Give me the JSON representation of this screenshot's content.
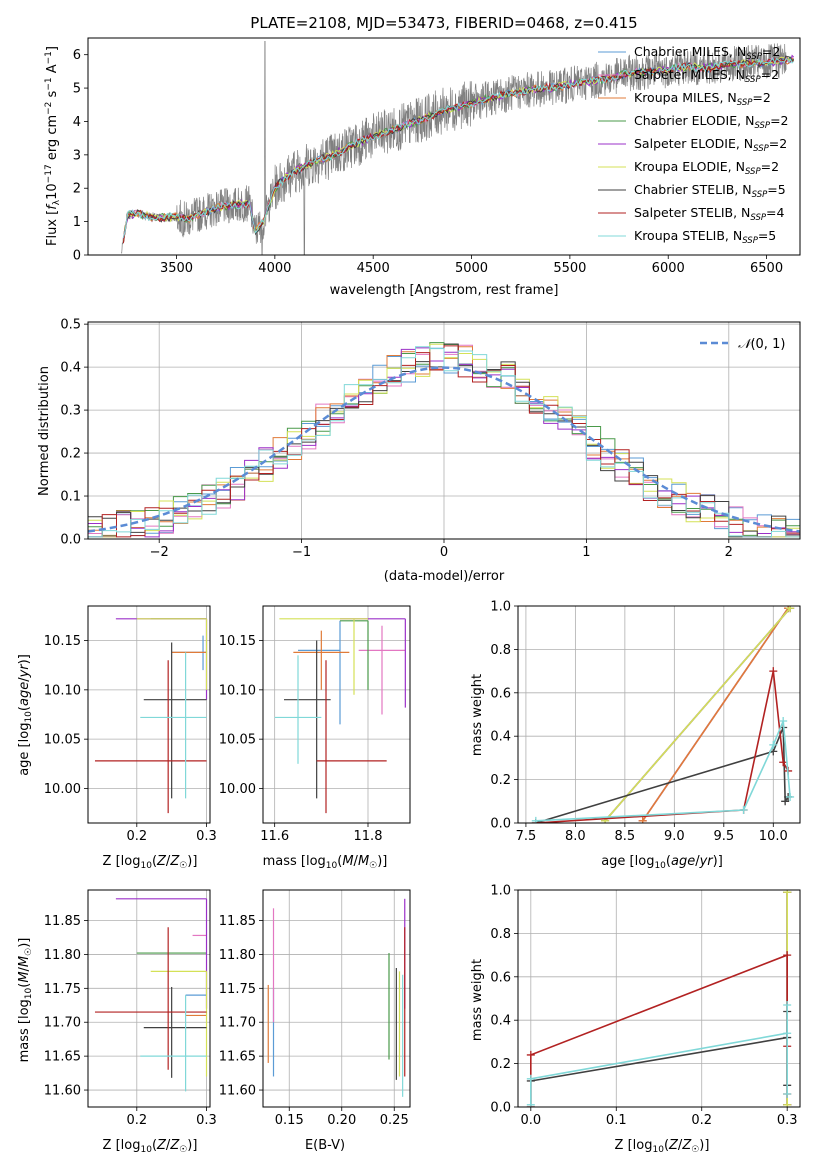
{
  "figure_title": "PLATE=2108, MJD=53473, FIBERID=0468, z=0.415",
  "series": [
    {
      "name": "Chabrier MILES, N$_{SSP}$=2",
      "color": "#5b9bd5",
      "nssp": "2"
    },
    {
      "name": "Salpeter MILES, N$_{SSP}$=2",
      "color": "#e377c2",
      "nssp": "2"
    },
    {
      "name": "Kroupa MILES, N$_{SSP}$=2",
      "color": "#e07b39",
      "nssp": "2"
    },
    {
      "name": "Chabrier ELODIE, N$_{SSP}$=2",
      "color": "#4a9a4a",
      "nssp": "2"
    },
    {
      "name": "Salpeter ELODIE, N$_{SSP}$=2",
      "color": "#9b30c8",
      "nssp": "2"
    },
    {
      "name": "Kroupa ELODIE, N$_{SSP}$=2",
      "color": "#d4e157",
      "nssp": "2"
    },
    {
      "name": "Chabrier STELIB, N$_{SSP}$=5",
      "color": "#404040",
      "nssp": "5"
    },
    {
      "name": "Salpeter STELIB, N$_{SSP}$=4",
      "color": "#b22222",
      "nssp": "4"
    },
    {
      "name": "Kroupa STELIB, N$_{SSP}$=5",
      "color": "#80d8d8",
      "nssp": "5"
    }
  ],
  "chart_data": [
    {
      "id": "spectrum",
      "type": "line",
      "xlabel": "wavelength [Angstrom, rest frame]",
      "ylabel": "Flux [f_λ 10^-17 erg cm^-2 s^-1 A^-1]",
      "xlim": [
        3050,
        6670
      ],
      "ylim": [
        0,
        6.5
      ],
      "xticks": [
        3500,
        4000,
        4500,
        5000,
        5500,
        6000,
        6500
      ],
      "yticks": [
        0,
        1,
        2,
        3,
        4,
        5,
        6
      ],
      "data_color": "#808080",
      "continuum": {
        "x": [
          3220,
          3250,
          3300,
          3400,
          3500,
          3550,
          3600,
          3700,
          3800,
          3870,
          3900,
          3940,
          4000,
          4050,
          4100,
          4200,
          4300,
          4400,
          4500,
          4600,
          4700,
          4800,
          4900,
          5000,
          5100,
          5200,
          5300,
          5400,
          5500,
          5600,
          5700,
          5800,
          5900,
          6000,
          6100,
          6200,
          6300,
          6400,
          6500,
          6670
        ],
        "y": [
          0.05,
          1.2,
          1.25,
          1.1,
          1.15,
          1.05,
          1.2,
          1.4,
          1.5,
          1.55,
          0.7,
          1.0,
          2.0,
          2.3,
          2.5,
          2.8,
          3.0,
          3.3,
          3.55,
          3.75,
          3.95,
          4.2,
          4.4,
          4.55,
          4.7,
          4.85,
          4.95,
          5.0,
          5.1,
          5.2,
          5.3,
          5.45,
          5.5,
          5.55,
          5.65,
          5.6,
          5.7,
          5.75,
          5.75,
          5.9
        ]
      }
    },
    {
      "id": "residuals",
      "type": "histogram",
      "xlabel": "(data-model)/error",
      "ylabel": "Normed distribution",
      "xlim": [
        -2.5,
        2.5
      ],
      "ylim": [
        0,
        0.505
      ],
      "xticks": [
        -2,
        -1,
        0,
        1,
        2
      ],
      "yticks": [
        0.0,
        0.1,
        0.2,
        0.3,
        0.4,
        0.5
      ],
      "grid": true,
      "bin_width": 0.1,
      "legend": "N(0,1)",
      "normal_curve": {
        "mean": 0,
        "sigma": 1,
        "style": "dashed",
        "color": "#5b8bd5"
      }
    },
    {
      "id": "age_vs_Z",
      "type": "errorbar",
      "xlabel": "Z [log10(Z/Z☉)]",
      "ylabel": "age  [log10(age/yr)]",
      "xlim": [
        0.13,
        0.305
      ],
      "ylim": [
        9.965,
        10.185
      ],
      "xticks": [
        0.2,
        0.3
      ],
      "yticks": [
        10.0,
        10.05,
        10.1,
        10.15
      ],
      "grid": true,
      "points": [
        {
          "s": 0,
          "x": 0.295,
          "y": 10.138,
          "xl": 0.25,
          "xh": 0.3,
          "yl": 10.12,
          "yh": 10.155
        },
        {
          "s": 1,
          "x": 0.3,
          "y": 10.172,
          "xl": 0.29,
          "xh": 0.3,
          "yl": 10.172,
          "yh": 10.172
        },
        {
          "s": 2,
          "x": 0.275,
          "y": 10.138,
          "xl": 0.25,
          "xh": 0.3,
          "yl": 10.138,
          "yh": 10.138
        },
        {
          "s": 3,
          "x": 0.3,
          "y": 10.172,
          "xl": 0.22,
          "xh": 0.3,
          "yl": 10.172,
          "yh": 10.172
        },
        {
          "s": 4,
          "x": 0.3,
          "y": 10.172,
          "xl": 0.17,
          "xh": 0.3,
          "yl": 10.09,
          "yh": 10.172
        },
        {
          "s": 5,
          "x": 0.3,
          "y": 10.172,
          "xl": 0.2,
          "xh": 0.3,
          "yl": 10.1,
          "yh": 10.172
        },
        {
          "s": 6,
          "x": 0.25,
          "y": 10.09,
          "xl": 0.21,
          "xh": 0.3,
          "yl": 9.99,
          "yh": 10.148
        },
        {
          "s": 7,
          "x": 0.245,
          "y": 10.028,
          "xl": 0.14,
          "xh": 0.3,
          "yl": 9.975,
          "yh": 10.13
        },
        {
          "s": 8,
          "x": 0.27,
          "y": 10.072,
          "xl": 0.205,
          "xh": 0.3,
          "yl": 9.99,
          "yh": 10.138
        }
      ]
    },
    {
      "id": "age_vs_mass",
      "type": "errorbar",
      "xlabel": "mass [log10(M/M☉)]",
      "ylabel": "",
      "xlim": [
        11.575,
        11.89
      ],
      "ylim": [
        9.965,
        10.185
      ],
      "xticks": [
        11.6,
        11.8
      ],
      "yticks": [
        10.0,
        10.05,
        10.1,
        10.15
      ],
      "grid": true,
      "points": [
        {
          "s": 0,
          "x": 11.74,
          "y": 10.14,
          "xl": 11.65,
          "xh": 11.74,
          "yl": 10.065,
          "yh": 10.17
        },
        {
          "s": 1,
          "x": 11.83,
          "y": 10.14,
          "xl": 11.78,
          "xh": 11.88,
          "yl": 10.075,
          "yh": 10.165
        },
        {
          "s": 2,
          "x": 11.7,
          "y": 10.138,
          "xl": 11.64,
          "xh": 11.76,
          "yl": 10.1,
          "yh": 10.16
        },
        {
          "s": 3,
          "x": 11.8,
          "y": 10.17,
          "xl": 11.74,
          "xh": 11.8,
          "yl": 10.1,
          "yh": 10.17
        },
        {
          "s": 4,
          "x": 11.88,
          "y": 10.172,
          "xl": 11.74,
          "xh": 11.88,
          "yl": 10.082,
          "yh": 10.172
        },
        {
          "s": 5,
          "x": 11.77,
          "y": 10.172,
          "xl": 11.61,
          "xh": 11.8,
          "yl": 10.095,
          "yh": 10.172
        },
        {
          "s": 6,
          "x": 11.69,
          "y": 10.09,
          "xl": 11.62,
          "xh": 11.72,
          "yl": 9.99,
          "yh": 10.15
        },
        {
          "s": 7,
          "x": 11.71,
          "y": 10.028,
          "xl": 11.69,
          "xh": 11.84,
          "yl": 9.975,
          "yh": 10.13
        },
        {
          "s": 8,
          "x": 11.65,
          "y": 10.072,
          "xl": 11.6,
          "xh": 11.7,
          "yl": 10.025,
          "yh": 10.135
        }
      ]
    },
    {
      "id": "weight_vs_age",
      "type": "line",
      "xlabel": "age  [log10(age/yr)]",
      "ylabel": "mass weight",
      "xlim": [
        7.42,
        10.27
      ],
      "ylim": [
        0,
        1.0
      ],
      "xticks": [
        7.5,
        8.0,
        8.5,
        9.0,
        9.5,
        10.0
      ],
      "yticks": [
        0.0,
        0.2,
        0.4,
        0.6,
        0.8,
        1.0
      ],
      "grid": true,
      "lines": [
        {
          "s": 0,
          "x": [
            8.68,
            10.15
          ],
          "y": [
            0.01,
            0.99
          ]
        },
        {
          "s": 1,
          "x": [
            8.68,
            10.15
          ],
          "y": [
            0.01,
            0.99
          ]
        },
        {
          "s": 2,
          "x": [
            8.68,
            10.15
          ],
          "y": [
            0.01,
            0.99
          ]
        },
        {
          "s": 3,
          "x": [
            8.3,
            10.17
          ],
          "y": [
            0.01,
            0.99
          ]
        },
        {
          "s": 4,
          "x": [
            8.3,
            10.17
          ],
          "y": [
            0.01,
            0.99
          ]
        },
        {
          "s": 5,
          "x": [
            8.3,
            10.17
          ],
          "y": [
            0.01,
            0.99
          ]
        },
        {
          "s": 6,
          "x": [
            7.6,
            10.0,
            10.1,
            10.12,
            10.15
          ],
          "y": [
            0.0,
            0.33,
            0.44,
            0.1,
            0.12
          ]
        },
        {
          "s": 7,
          "x": [
            7.6,
            9.7,
            10.0,
            10.1,
            10.15
          ],
          "y": [
            0.0,
            0.06,
            0.7,
            0.28,
            0.24
          ]
        },
        {
          "s": 8,
          "x": [
            7.6,
            9.7,
            10.0,
            10.1,
            10.17
          ],
          "y": [
            0.01,
            0.06,
            0.36,
            0.47,
            0.12
          ]
        }
      ]
    },
    {
      "id": "mass_vs_Z",
      "type": "errorbar",
      "xlabel": "Z [log10(Z/Z☉)]",
      "ylabel": "mass [log10(M/M☉)]",
      "xlim": [
        0.13,
        0.305
      ],
      "ylim": [
        11.575,
        11.895
      ],
      "xticks": [
        0.2,
        0.3
      ],
      "yticks": [
        11.6,
        11.65,
        11.7,
        11.75,
        11.8,
        11.85
      ],
      "grid": true,
      "points": [
        {
          "s": 0,
          "x": 0.29,
          "y": 11.74,
          "xl": 0.27,
          "xh": 0.3,
          "yl": 11.74,
          "yh": 11.74
        },
        {
          "s": 1,
          "x": 0.3,
          "y": 11.828,
          "xl": 0.28,
          "xh": 0.3,
          "yl": 11.828,
          "yh": 11.828
        },
        {
          "s": 2,
          "x": 0.3,
          "y": 11.71,
          "xl": 0.27,
          "xh": 0.3,
          "yl": 11.71,
          "yh": 11.71
        },
        {
          "s": 3,
          "x": 0.3,
          "y": 11.802,
          "xl": 0.2,
          "xh": 0.3,
          "yl": 11.802,
          "yh": 11.802
        },
        {
          "s": 4,
          "x": 0.3,
          "y": 11.882,
          "xl": 0.17,
          "xh": 0.3,
          "yl": 11.72,
          "yh": 11.882
        },
        {
          "s": 5,
          "x": 0.3,
          "y": 11.775,
          "xl": 0.22,
          "xh": 0.3,
          "yl": 11.62,
          "yh": 11.775
        },
        {
          "s": 6,
          "x": 0.25,
          "y": 11.692,
          "xl": 0.21,
          "xh": 0.3,
          "yl": 11.618,
          "yh": 11.752
        },
        {
          "s": 7,
          "x": 0.245,
          "y": 11.715,
          "xl": 0.14,
          "xh": 0.3,
          "yl": 11.63,
          "yh": 11.84
        },
        {
          "s": 8,
          "x": 0.27,
          "y": 11.65,
          "xl": 0.205,
          "xh": 0.3,
          "yl": 11.598,
          "yh": 11.74
        }
      ]
    },
    {
      "id": "mass_vs_ebv",
      "type": "errorbar",
      "xlabel": "E(B-V)",
      "ylabel": "",
      "xlim": [
        0.125,
        0.265
      ],
      "ylim": [
        11.575,
        11.895
      ],
      "xticks": [
        0.15,
        0.2,
        0.25
      ],
      "yticks": [
        11.6,
        11.65,
        11.7,
        11.75,
        11.8,
        11.85
      ],
      "grid": true,
      "points": [
        {
          "s": 0,
          "x": 0.135,
          "y": 11.69,
          "xl": 0.135,
          "xh": 0.135,
          "yl": 11.62,
          "yh": 11.75
        },
        {
          "s": 1,
          "x": 0.135,
          "y": 11.78,
          "xl": 0.135,
          "xh": 0.135,
          "yl": 11.7,
          "yh": 11.868
        },
        {
          "s": 2,
          "x": 0.13,
          "y": 11.7,
          "xl": 0.13,
          "xh": 0.13,
          "yl": 11.64,
          "yh": 11.755
        },
        {
          "s": 3,
          "x": 0.245,
          "y": 11.72,
          "xl": 0.245,
          "xh": 0.245,
          "yl": 11.645,
          "yh": 11.802
        },
        {
          "s": 4,
          "x": 0.26,
          "y": 11.8,
          "xl": 0.26,
          "xh": 0.26,
          "yl": 11.72,
          "yh": 11.882
        },
        {
          "s": 5,
          "x": 0.255,
          "y": 11.7,
          "xl": 0.255,
          "xh": 0.255,
          "yl": 11.62,
          "yh": 11.775
        },
        {
          "s": 6,
          "x": 0.252,
          "y": 11.7,
          "xl": 0.252,
          "xh": 0.252,
          "yl": 11.615,
          "yh": 11.78
        },
        {
          "s": 7,
          "x": 0.26,
          "y": 11.7,
          "xl": 0.26,
          "xh": 0.26,
          "yl": 11.62,
          "yh": 11.84
        },
        {
          "s": 8,
          "x": 0.258,
          "y": 11.68,
          "xl": 0.258,
          "xh": 0.258,
          "yl": 11.59,
          "yh": 11.77
        }
      ]
    },
    {
      "id": "weight_vs_Z",
      "type": "line",
      "xlabel": "Z [log10(Z/Z☉)]",
      "ylabel": "mass weight",
      "xlim": [
        -0.015,
        0.315
      ],
      "ylim": [
        0,
        1.0
      ],
      "xticks": [
        0.0,
        0.1,
        0.2,
        0.3
      ],
      "yticks": [
        0.0,
        0.2,
        0.4,
        0.6,
        0.8,
        1.0
      ],
      "grid": true,
      "lines": [
        {
          "s": 0,
          "x": [
            0.3,
            0.3
          ],
          "y": [
            0.01,
            0.99
          ]
        },
        {
          "s": 1,
          "x": [
            0.3,
            0.3
          ],
          "y": [
            0.01,
            0.99
          ]
        },
        {
          "s": 2,
          "x": [
            0.3,
            0.3
          ],
          "y": [
            0.01,
            0.99
          ]
        },
        {
          "s": 3,
          "x": [
            0.3,
            0.3
          ],
          "y": [
            0.01,
            0.99
          ]
        },
        {
          "s": 4,
          "x": [
            0.3,
            0.3
          ],
          "y": [
            0.01,
            0.99
          ]
        },
        {
          "s": 5,
          "x": [
            0.3,
            0.3
          ],
          "y": [
            0.01,
            0.99
          ]
        },
        {
          "s": 6,
          "x": [
            0.0,
            0.0,
            0.3,
            0.3,
            0.3
          ],
          "y": [
            0.0,
            0.12,
            0.32,
            0.44,
            0.1
          ]
        },
        {
          "s": 7,
          "x": [
            0.0,
            0.0,
            0.3,
            0.3,
            0.3
          ],
          "y": [
            0.0,
            0.24,
            0.7,
            0.28,
            0.06
          ]
        },
        {
          "s": 8,
          "x": [
            0.0,
            0.0,
            0.3,
            0.3,
            0.3
          ],
          "y": [
            0.01,
            0.13,
            0.34,
            0.47,
            0.06
          ]
        }
      ]
    }
  ]
}
